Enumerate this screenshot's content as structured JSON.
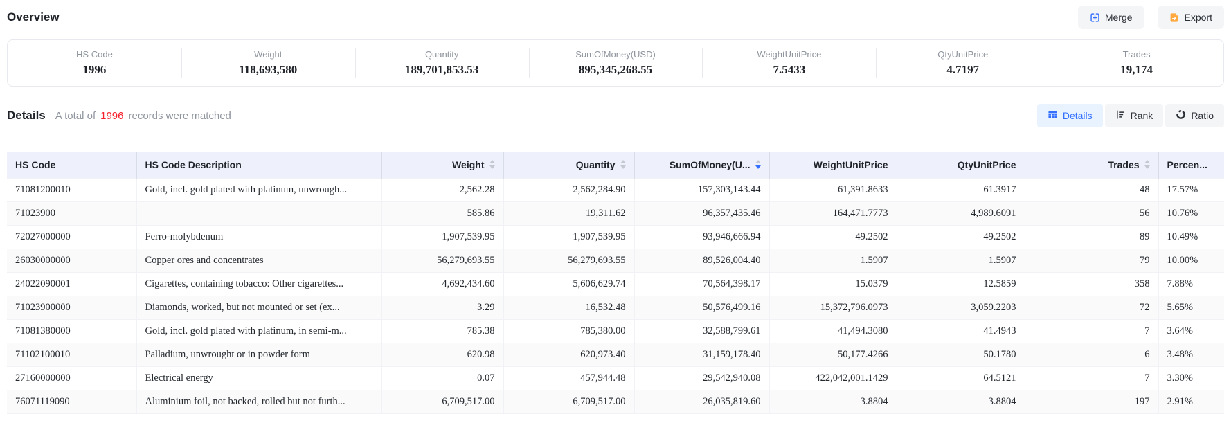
{
  "page": {
    "overview_title": "Overview",
    "details_title": "Details",
    "records_prefix": "A total of",
    "records_count": "1996",
    "records_suffix": "records were matched"
  },
  "toolbar": {
    "merge_label": "Merge",
    "export_label": "Export"
  },
  "view_tabs": [
    {
      "label": "Details",
      "active": true,
      "icon": "table-grid-icon"
    },
    {
      "label": "Rank",
      "active": false,
      "icon": "rank-bars-icon"
    },
    {
      "label": "Ratio",
      "active": false,
      "icon": "donut-ratio-icon"
    }
  ],
  "overview_stats": [
    {
      "label": "HS Code",
      "value": "1996"
    },
    {
      "label": "Weight",
      "value": "118,693,580"
    },
    {
      "label": "Quantity",
      "value": "189,701,853.53"
    },
    {
      "label": "SumOfMoney(USD)",
      "value": "895,345,268.55"
    },
    {
      "label": "WeightUnitPrice",
      "value": "7.5433"
    },
    {
      "label": "QtyUnitPrice",
      "value": "4.7197"
    },
    {
      "label": "Trades",
      "value": "19,174"
    }
  ],
  "table": {
    "columns": [
      {
        "label": "HS Code",
        "align": "left",
        "sortable": false,
        "sort": "none"
      },
      {
        "label": "HS Code Description",
        "align": "left",
        "sortable": false,
        "sort": "none"
      },
      {
        "label": "Weight",
        "align": "right",
        "sortable": true,
        "sort": "none"
      },
      {
        "label": "Quantity",
        "align": "right",
        "sortable": true,
        "sort": "none"
      },
      {
        "label": "SumOfMoney(U...",
        "align": "right",
        "sortable": true,
        "sort": "desc"
      },
      {
        "label": "WeightUnitPrice",
        "align": "right",
        "sortable": false,
        "sort": "none"
      },
      {
        "label": "QtyUnitPrice",
        "align": "right",
        "sortable": false,
        "sort": "none"
      },
      {
        "label": "Trades",
        "align": "right",
        "sortable": true,
        "sort": "none"
      },
      {
        "label": "Percen...",
        "align": "left",
        "sortable": false,
        "sort": "none"
      }
    ],
    "rows": [
      [
        "71081200010",
        "Gold, incl. gold plated with platinum, unwrough...",
        "2,562.28",
        "2,562,284.90",
        "157,303,143.44",
        "61,391.8633",
        "61.3917",
        "48",
        "17.57%"
      ],
      [
        "71023900",
        "",
        "585.86",
        "19,311.62",
        "96,357,435.46",
        "164,471.7773",
        "4,989.6091",
        "56",
        "10.76%"
      ],
      [
        "72027000000",
        "Ferro-molybdenum",
        "1,907,539.95",
        "1,907,539.95",
        "93,946,666.94",
        "49.2502",
        "49.2502",
        "89",
        "10.49%"
      ],
      [
        "26030000000",
        "Copper ores and concentrates",
        "56,279,693.55",
        "56,279,693.55",
        "89,526,004.40",
        "1.5907",
        "1.5907",
        "79",
        "10.00%"
      ],
      [
        "24022090001",
        "Cigarettes, containing tobacco: Other cigarettes...",
        "4,692,434.60",
        "5,606,629.74",
        "70,564,398.17",
        "15.0379",
        "12.5859",
        "358",
        "7.88%"
      ],
      [
        "71023900000",
        "Diamonds, worked, but not mounted or set (ex...",
        "3.29",
        "16,532.48",
        "50,576,499.16",
        "15,372,796.0973",
        "3,059.2203",
        "72",
        "5.65%"
      ],
      [
        "71081380000",
        "Gold, incl. gold plated with platinum, in semi-m...",
        "785.38",
        "785,380.00",
        "32,588,799.61",
        "41,494.3080",
        "41.4943",
        "7",
        "3.64%"
      ],
      [
        "71102100010",
        "Palladium, unwrought or in powder form",
        "620.98",
        "620,973.40",
        "31,159,178.40",
        "50,177.4266",
        "50.1780",
        "6",
        "3.48%"
      ],
      [
        "27160000000",
        "Electrical energy",
        "0.07",
        "457,944.48",
        "29,542,940.08",
        "422,042,001.1429",
        "64.5121",
        "7",
        "3.30%"
      ],
      [
        "76071119090",
        "Aluminium foil, not backed, rolled but not furth...",
        "6,709,517.00",
        "6,709,517.00",
        "26,035,819.60",
        "3.8804",
        "3.8804",
        "197",
        "2.91%"
      ]
    ]
  },
  "colors": {
    "accent_blue": "#3370ff",
    "active_tab_bg": "#e8f3ff",
    "export_orange": "#ffa940",
    "records_count_red": "#f5222d",
    "table_header_bg": "#eef1fb",
    "muted_text": "#8f959e"
  }
}
